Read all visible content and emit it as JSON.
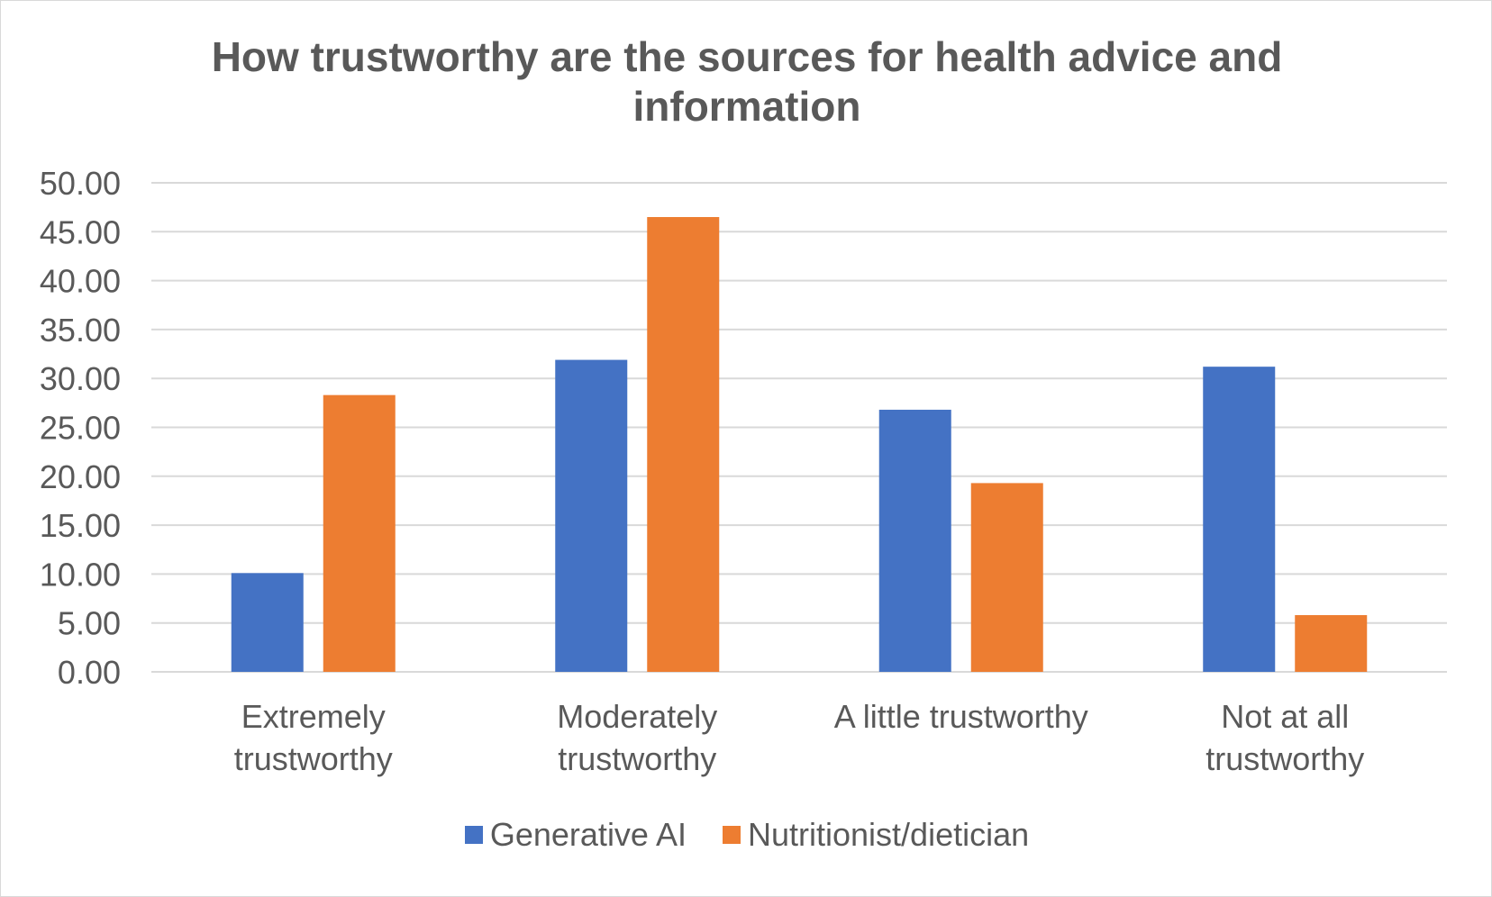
{
  "chart_data": {
    "type": "bar",
    "title": "How trustworthy are the sources for health advice and information",
    "categories": [
      [
        "Extremely",
        "trustworthy"
      ],
      [
        "Moderately",
        "trustworthy"
      ],
      [
        "A little trustworthy"
      ],
      [
        "Not at all",
        "trustworthy"
      ]
    ],
    "series": [
      {
        "name": "Generative AI",
        "color": "#4472c4",
        "values": [
          10.1,
          31.9,
          26.8,
          31.2
        ]
      },
      {
        "name": "Nutritionist/dietician",
        "color": "#ed7d31",
        "values": [
          28.3,
          46.5,
          19.3,
          5.8
        ]
      }
    ],
    "yticks": [
      "0.00",
      "5.00",
      "10.00",
      "15.00",
      "20.00",
      "25.00",
      "30.00",
      "35.00",
      "40.00",
      "45.00",
      "50.00"
    ],
    "ylim": [
      0,
      50
    ],
    "grid": true,
    "legend_position": "bottom"
  }
}
